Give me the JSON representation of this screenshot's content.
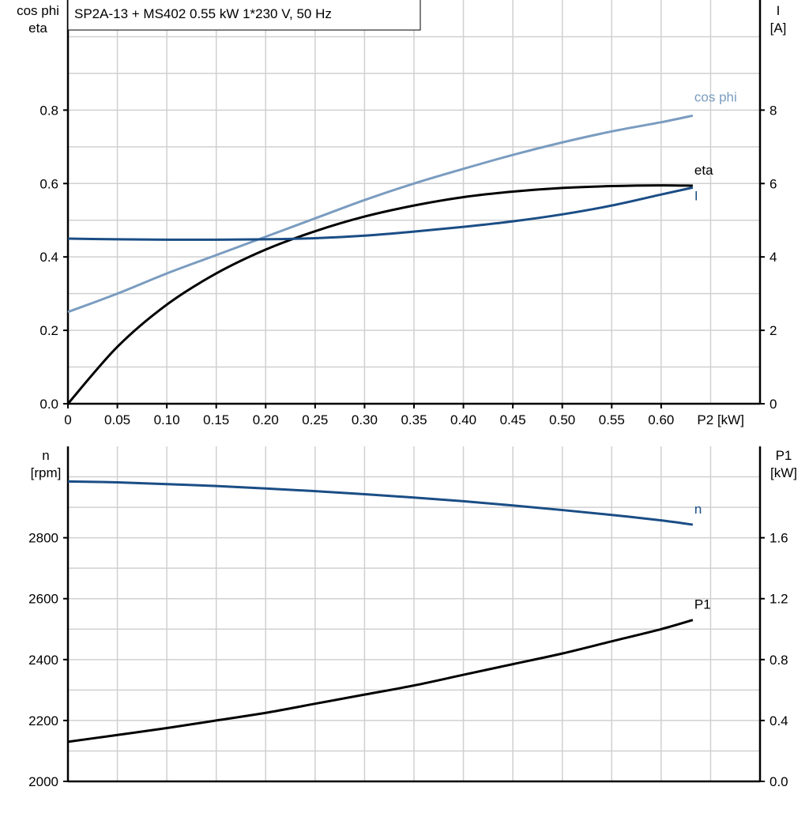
{
  "chart_data": [
    {
      "type": "line",
      "title": "SP2A-13 + MS402   0.55 kW   1*230 V, 50 Hz",
      "xlabel": "P2 [kW]",
      "ylabel_left": [
        "cos phi",
        "eta"
      ],
      "ylabel_right": [
        "I",
        "[A]"
      ],
      "xlim": [
        0,
        0.7
      ],
      "ylim_left": [
        0,
        1.1
      ],
      "ylim_right": [
        0,
        11
      ],
      "xticks": [
        "0",
        "0.05",
        "0.10",
        "0.15",
        "0.20",
        "0.25",
        "0.30",
        "0.35",
        "0.40",
        "0.45",
        "0.50",
        "0.55",
        "0.60"
      ],
      "yticks_left": [
        "0.0",
        "0.2",
        "0.4",
        "0.6",
        "0.8"
      ],
      "yticks_right": [
        "0",
        "2",
        "4",
        "6",
        "8"
      ],
      "grid": true,
      "x": [
        0,
        0.05,
        0.1,
        0.15,
        0.2,
        0.25,
        0.3,
        0.35,
        0.4,
        0.45,
        0.5,
        0.55,
        0.6,
        0.632
      ],
      "series": [
        {
          "name": "cos phi",
          "axis": "left",
          "color": "#7a9cc0",
          "values": [
            0.25,
            0.3,
            0.355,
            0.405,
            0.455,
            0.505,
            0.555,
            0.6,
            0.64,
            0.678,
            0.712,
            0.742,
            0.767,
            0.785
          ]
        },
        {
          "name": "eta",
          "axis": "left",
          "color": "#000000",
          "values": [
            0,
            0.155,
            0.27,
            0.355,
            0.42,
            0.47,
            0.51,
            0.54,
            0.563,
            0.578,
            0.588,
            0.593,
            0.595,
            0.594
          ]
        },
        {
          "name": "I",
          "axis": "right",
          "color": "#1a4d85",
          "values": [
            4.5,
            4.48,
            4.47,
            4.47,
            4.48,
            4.51,
            4.58,
            4.69,
            4.82,
            4.97,
            5.16,
            5.4,
            5.7,
            5.89
          ]
        }
      ]
    },
    {
      "type": "line",
      "xlabel": "",
      "ylabel_left": [
        "n",
        "[rpm]"
      ],
      "ylabel_right": [
        "P1",
        "[kW]"
      ],
      "xlim": [
        0,
        0.7
      ],
      "ylim_left": [
        2000,
        3100
      ],
      "ylim_right": [
        0,
        2.2
      ],
      "yticks_left": [
        "2000",
        "2200",
        "2400",
        "2600",
        "2800"
      ],
      "yticks_right": [
        "0.0",
        "0.4",
        "0.8",
        "1.2",
        "1.6"
      ],
      "grid": true,
      "x": [
        0,
        0.05,
        0.1,
        0.15,
        0.2,
        0.25,
        0.3,
        0.35,
        0.4,
        0.45,
        0.5,
        0.55,
        0.6,
        0.632
      ],
      "series": [
        {
          "name": "n",
          "axis": "left",
          "color": "#1a4d85",
          "values": [
            2985,
            2982,
            2976,
            2970,
            2962,
            2953,
            2943,
            2932,
            2920,
            2906,
            2891,
            2875,
            2857,
            2843
          ]
        },
        {
          "name": "P1",
          "axis": "right",
          "color": "#000000",
          "values": [
            0.26,
            0.305,
            0.35,
            0.4,
            0.45,
            0.51,
            0.57,
            0.63,
            0.7,
            0.77,
            0.84,
            0.92,
            1.0,
            1.06
          ]
        }
      ]
    }
  ]
}
